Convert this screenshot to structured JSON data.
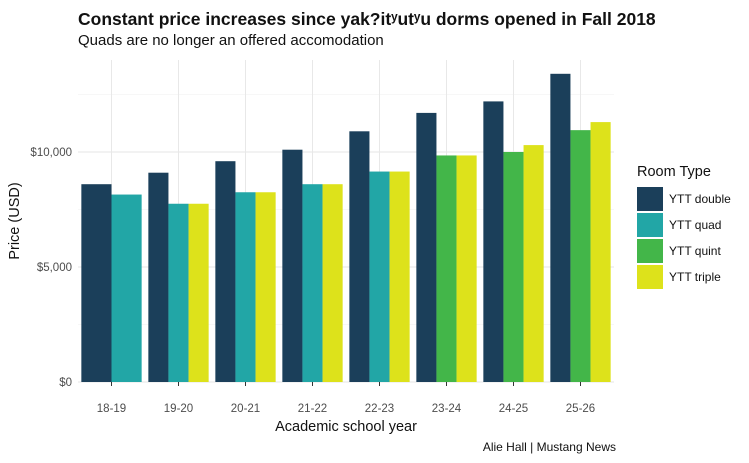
{
  "header": {
    "title": "Constant price increases since yak?itʸutʸu dorms opened in Fall 2018",
    "subtitle": "Quads are no longer an offered accomodation"
  },
  "caption": "Alie Hall | Mustang News",
  "chart_data": {
    "type": "bar",
    "title": "Constant price increases since yak?itʸutʸu dorms opened in Fall 2018",
    "subtitle": "Quads are no longer an offered accomodation",
    "xlabel": "Academic school year",
    "ylabel": "Price (USD)",
    "ylim": [
      0,
      14000
    ],
    "yticks": [
      0,
      5000,
      10000
    ],
    "ytick_labels": [
      "$0",
      "$5,000",
      "$10,000"
    ],
    "grid": true,
    "legend_title": "Room Type",
    "legend_position": "right",
    "categories": [
      "18-19",
      "19-20",
      "20-21",
      "21-22",
      "22-23",
      "23-24",
      "24-25",
      "25-26"
    ],
    "series": [
      {
        "name": "YTT double",
        "color": "#1b3f5a",
        "values": [
          8600,
          9100,
          9600,
          10100,
          10900,
          11700,
          12200,
          13400
        ]
      },
      {
        "name": "YTT quad",
        "color": "#22a6a6",
        "values": [
          8150,
          7750,
          8250,
          8600,
          9150,
          null,
          null,
          null
        ]
      },
      {
        "name": "YTT quint",
        "color": "#43b649",
        "values": [
          null,
          null,
          null,
          null,
          null,
          9850,
          10000,
          10950
        ]
      },
      {
        "name": "YTT triple",
        "color": "#dde21b",
        "values": [
          null,
          7750,
          8250,
          8600,
          9150,
          9850,
          10300,
          11300
        ]
      }
    ]
  }
}
